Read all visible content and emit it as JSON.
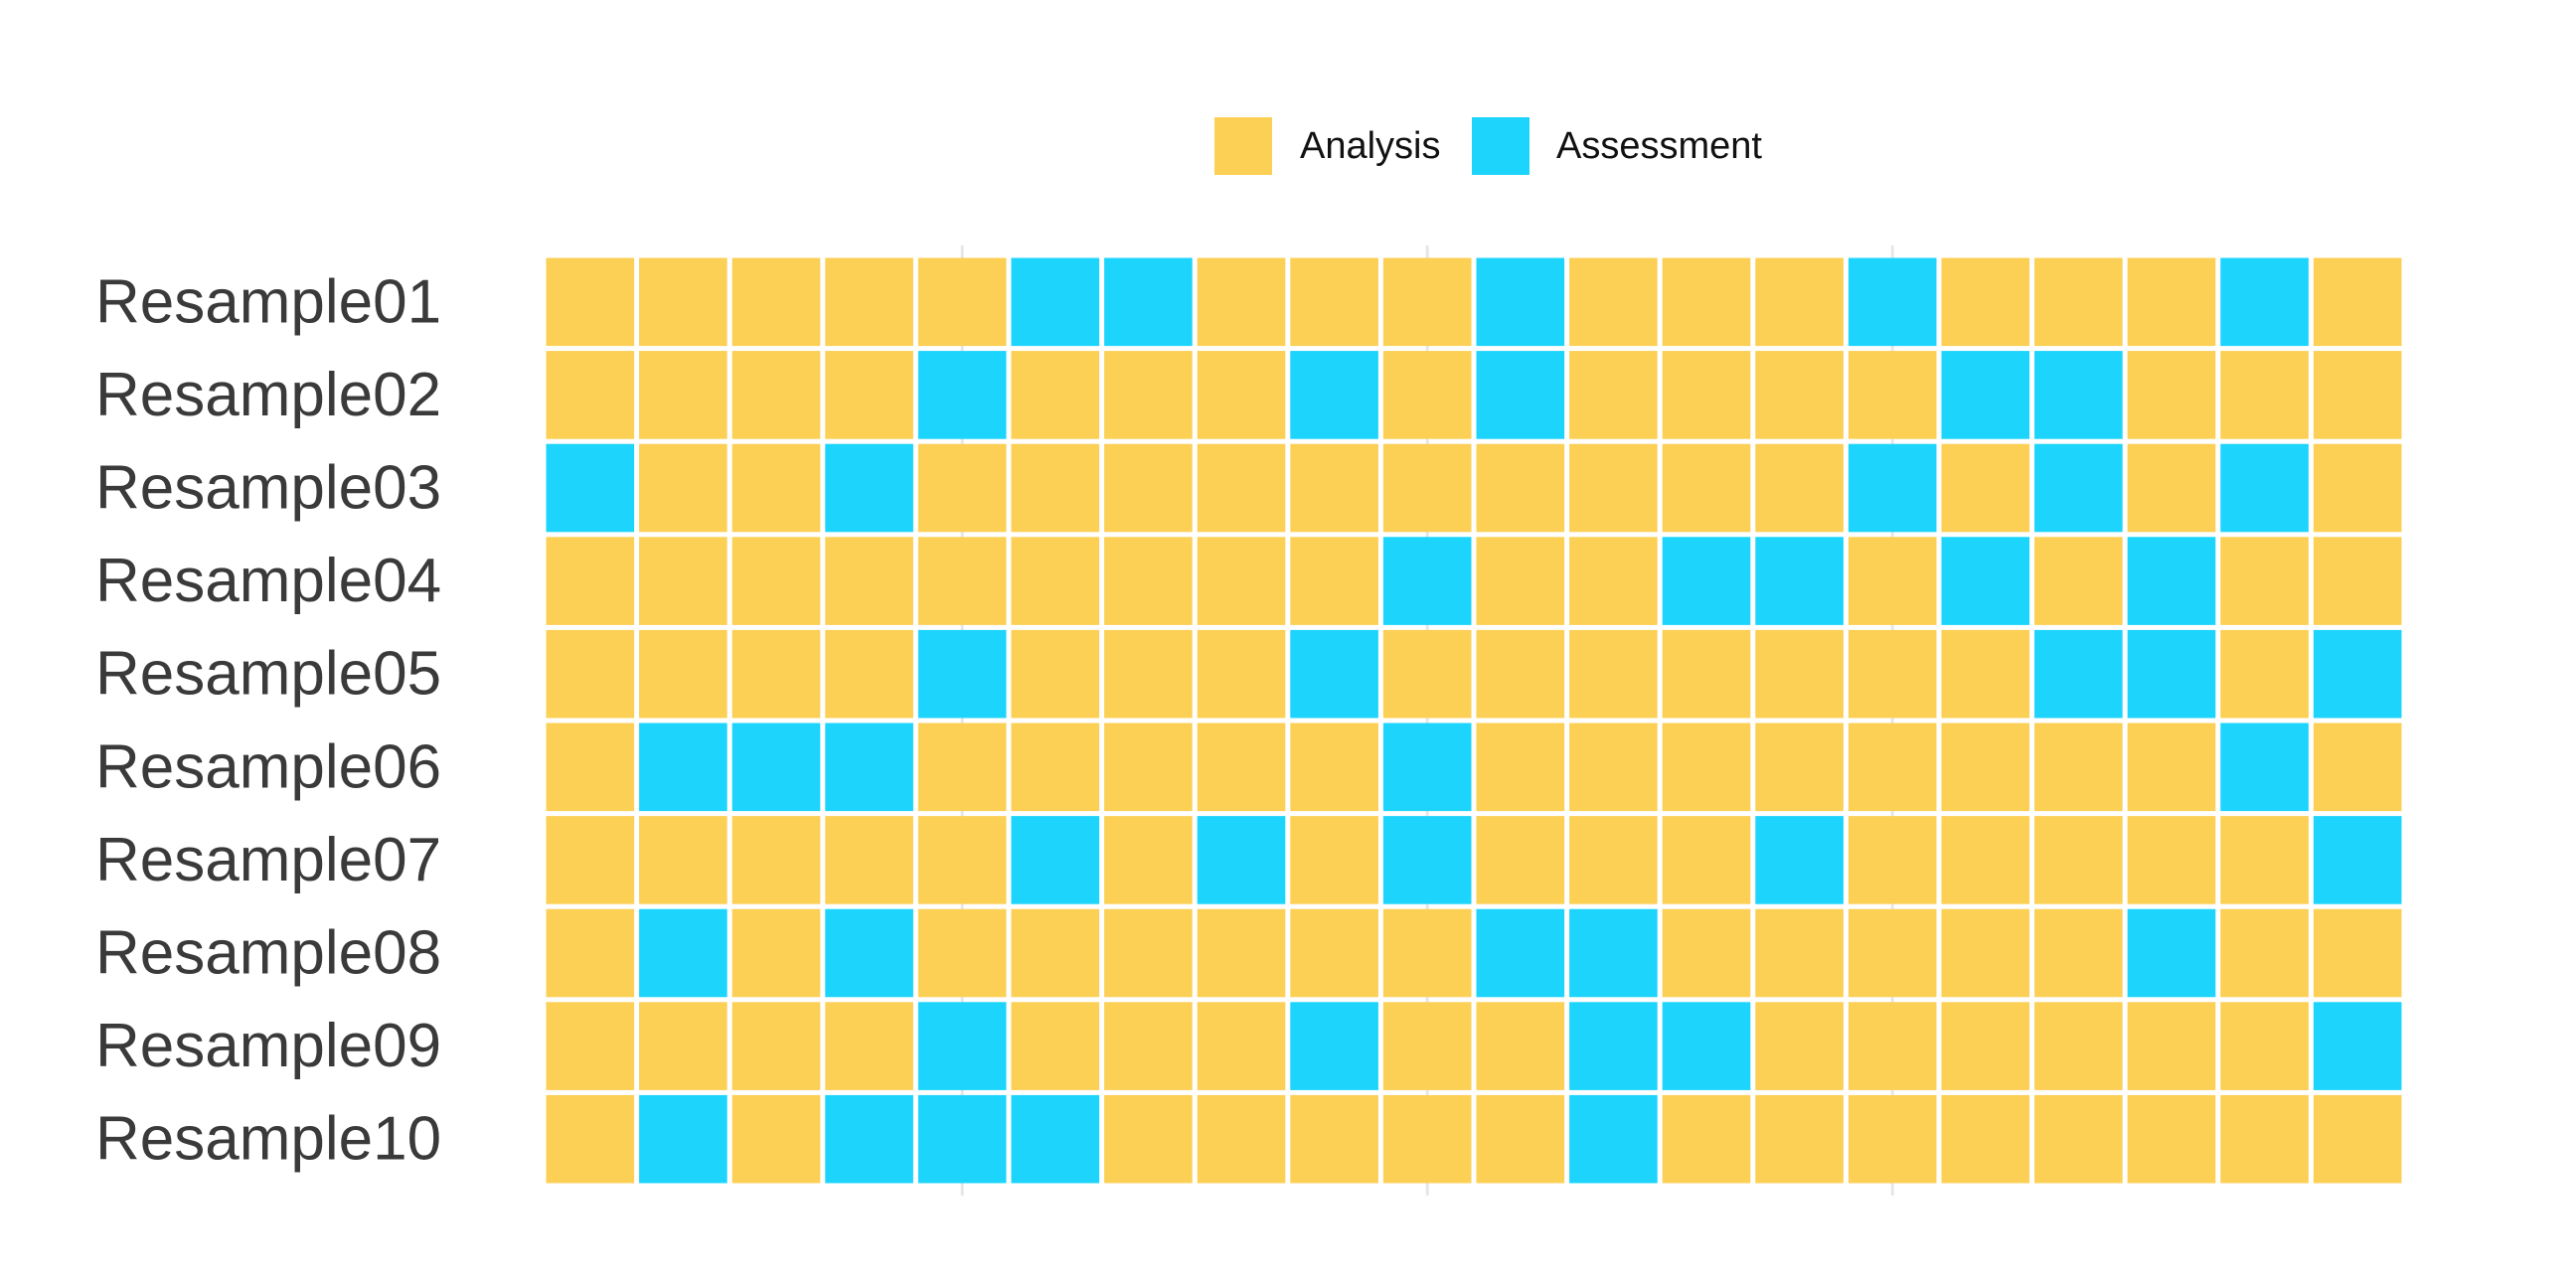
{
  "chart_data": {
    "type": "heatmap",
    "title": "",
    "xlabel": "",
    "ylabel": "",
    "grid": true,
    "legend_position": "top",
    "legend": [
      {
        "key": "A",
        "label": "Analysis",
        "color": "#FCCF55"
      },
      {
        "key": "S",
        "label": "Assessment",
        "color": "#1DD4FC"
      }
    ],
    "rows": [
      {
        "label": "Resample01",
        "cells": [
          "A",
          "A",
          "A",
          "A",
          "A",
          "S",
          "S",
          "A",
          "A",
          "A",
          "S",
          "A",
          "A",
          "A",
          "S",
          "A",
          "A",
          "A",
          "S",
          "A"
        ]
      },
      {
        "label": "Resample02",
        "cells": [
          "A",
          "A",
          "A",
          "A",
          "S",
          "A",
          "A",
          "A",
          "S",
          "A",
          "S",
          "A",
          "A",
          "A",
          "A",
          "S",
          "S",
          "A",
          "A",
          "A"
        ]
      },
      {
        "label": "Resample03",
        "cells": [
          "S",
          "A",
          "A",
          "S",
          "A",
          "A",
          "A",
          "A",
          "A",
          "A",
          "A",
          "A",
          "A",
          "A",
          "S",
          "A",
          "S",
          "A",
          "S",
          "A"
        ]
      },
      {
        "label": "Resample04",
        "cells": [
          "A",
          "A",
          "A",
          "A",
          "A",
          "A",
          "A",
          "A",
          "A",
          "S",
          "A",
          "A",
          "S",
          "S",
          "A",
          "S",
          "A",
          "S",
          "A",
          "A"
        ]
      },
      {
        "label": "Resample05",
        "cells": [
          "A",
          "A",
          "A",
          "A",
          "S",
          "A",
          "A",
          "A",
          "S",
          "A",
          "A",
          "A",
          "A",
          "A",
          "A",
          "A",
          "S",
          "S",
          "A",
          "S"
        ]
      },
      {
        "label": "Resample06",
        "cells": [
          "A",
          "S",
          "S",
          "S",
          "A",
          "A",
          "A",
          "A",
          "A",
          "S",
          "A",
          "A",
          "A",
          "A",
          "A",
          "A",
          "A",
          "A",
          "S",
          "A"
        ]
      },
      {
        "label": "Resample07",
        "cells": [
          "A",
          "A",
          "A",
          "A",
          "A",
          "S",
          "A",
          "S",
          "A",
          "S",
          "A",
          "A",
          "A",
          "S",
          "A",
          "A",
          "A",
          "A",
          "A",
          "S"
        ]
      },
      {
        "label": "Resample08",
        "cells": [
          "A",
          "S",
          "A",
          "S",
          "A",
          "A",
          "A",
          "A",
          "A",
          "A",
          "S",
          "S",
          "A",
          "A",
          "A",
          "A",
          "A",
          "S",
          "A",
          "A"
        ]
      },
      {
        "label": "Resample09",
        "cells": [
          "A",
          "A",
          "A",
          "A",
          "S",
          "A",
          "A",
          "A",
          "S",
          "A",
          "A",
          "S",
          "S",
          "A",
          "A",
          "A",
          "A",
          "A",
          "A",
          "S"
        ]
      },
      {
        "label": "Resample10",
        "cells": [
          "A",
          "S",
          "A",
          "S",
          "S",
          "S",
          "A",
          "A",
          "A",
          "A",
          "A",
          "S",
          "A",
          "A",
          "A",
          "A",
          "A",
          "A",
          "A",
          "A"
        ]
      }
    ]
  }
}
